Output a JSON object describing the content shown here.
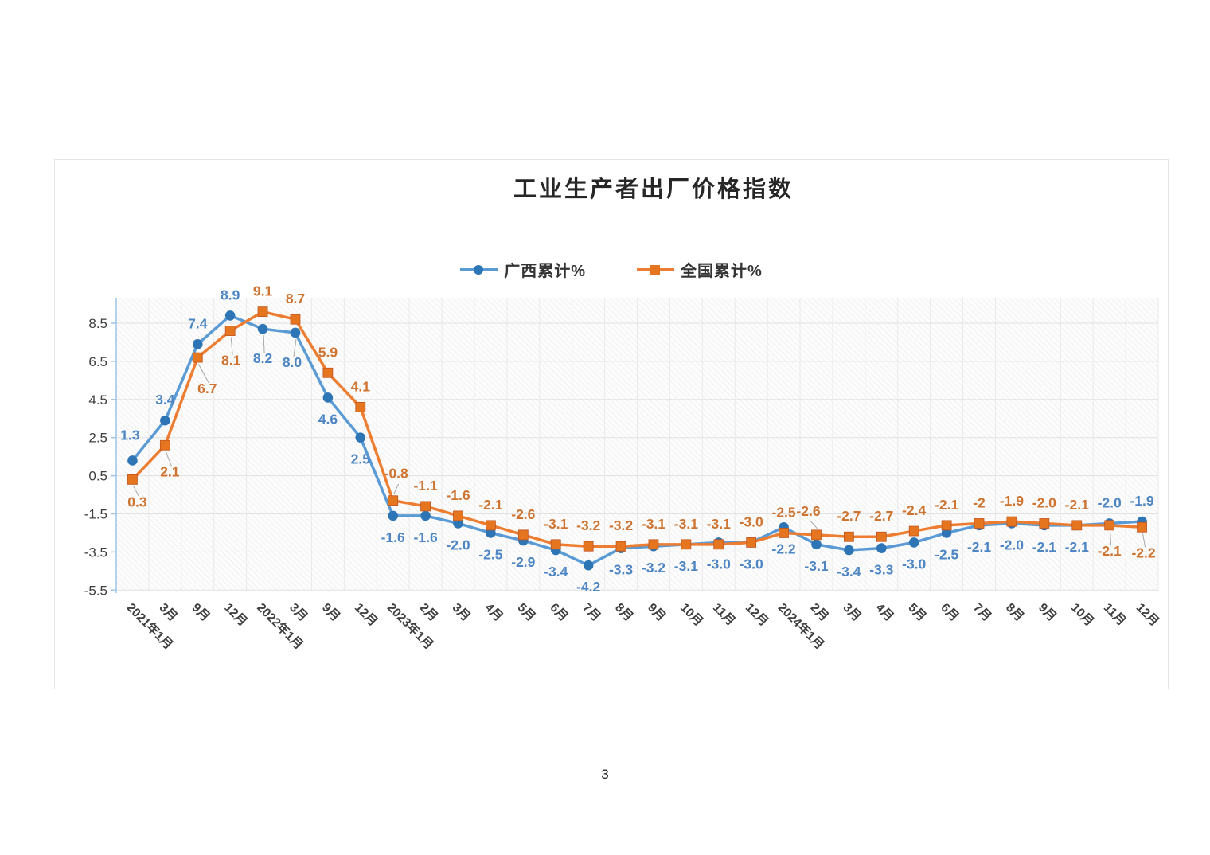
{
  "page": {
    "number": "3"
  },
  "chart_data": {
    "type": "line",
    "title": "工业生产者出厂价格指数",
    "categories": [
      "2021年1月",
      "3月",
      "9月",
      "12月",
      "2022年1月",
      "3月",
      "9月",
      "12月",
      "2023年1月",
      "2月",
      "3月",
      "4月",
      "5月",
      "6月",
      "7月",
      "8月",
      "9月",
      "10月",
      "11月",
      "12月",
      "2024年1月",
      "2月",
      "3月",
      "4月",
      "5月",
      "6月",
      "7月",
      "8月",
      "9月",
      "10月",
      "11月",
      "12月"
    ],
    "series": [
      {
        "name": "广西累计%",
        "marker": "circle",
        "color": "#5B9BD5",
        "marker_color": "#2E75B6",
        "label_color": "#4E86C3",
        "values": [
          1.3,
          3.4,
          7.4,
          8.9,
          8.2,
          8.0,
          4.6,
          2.5,
          -1.6,
          -1.6,
          -2.0,
          -2.5,
          -2.9,
          -3.4,
          -4.2,
          -3.3,
          -3.2,
          -3.1,
          -3.0,
          -3.0,
          -2.2,
          -3.1,
          -3.4,
          -3.3,
          -3.0,
          -2.5,
          -2.1,
          -2.0,
          -2.1,
          -2.1,
          -2.0,
          -1.9
        ],
        "labels": [
          "1.3",
          "3.4",
          "7.4",
          "8.9",
          "8.2",
          "8.0",
          "4.6",
          "2.5",
          "-1.6",
          "-1.6",
          "-2.0",
          "-2.5",
          "-2.9",
          "-3.4",
          "-4.2",
          "-3.3",
          "-3.2",
          "-3.1",
          "-3.0",
          "-3.0",
          "-2.2",
          "-3.1",
          "-3.4",
          "-3.3",
          "-3.0",
          "-2.5",
          "-2.1",
          "-2.0",
          "-2.1",
          "-2.1",
          "-2.0",
          "-1.9"
        ],
        "label_side": [
          "above",
          "above",
          "above",
          "above",
          "below",
          "below",
          "below",
          "below",
          "below",
          "below",
          "below",
          "below",
          "below",
          "below",
          "below",
          "below",
          "below",
          "below",
          "below",
          "below",
          "below",
          "below",
          "below",
          "below",
          "below",
          "below",
          "below",
          "below",
          "below",
          "below",
          "above",
          "above"
        ]
      },
      {
        "name": "全国累计%",
        "marker": "square",
        "color": "#ED7D31",
        "marker_color": "#E5751F",
        "label_color": "#CE7430",
        "values": [
          0.3,
          2.1,
          6.7,
          8.1,
          9.1,
          8.7,
          5.9,
          4.1,
          -0.8,
          -1.1,
          -1.6,
          -2.1,
          -2.6,
          -3.1,
          -3.2,
          -3.2,
          -3.1,
          -3.1,
          -3.1,
          -3.0,
          -2.5,
          -2.6,
          -2.7,
          -2.7,
          -2.4,
          -2.1,
          -2,
          -1.9,
          -2.0,
          -2.1,
          -2.1,
          -2.2
        ],
        "labels": [
          "0.3",
          "2.1",
          "6.7",
          "8.1",
          "9.1",
          "8.7",
          "5.9",
          "4.1",
          "-0.8",
          "-1.1",
          "-1.6",
          "-2.1",
          "-2.6",
          "-3.1",
          "-3.2",
          "-3.2",
          "-3.1",
          "-3.1",
          "-3.1",
          "-3.0",
          "-2.5",
          "-2.6",
          "-2.7",
          "-2.7",
          "-2.4",
          "-2.1",
          "-2",
          "-1.9",
          "-2.0",
          "-2.1",
          "-2.1",
          "-2.2"
        ],
        "label_side": [
          "below",
          "below",
          "below",
          "below",
          "above",
          "above",
          "above",
          "above",
          "above",
          "above",
          "above",
          "above",
          "above",
          "above",
          "above",
          "above",
          "above",
          "above",
          "above",
          "above",
          "above",
          "above",
          "above",
          "above",
          "above",
          "above",
          "above",
          "above",
          "above",
          "above",
          "below",
          "below"
        ]
      }
    ],
    "y_axis": {
      "ticks": [
        8.5,
        6.5,
        4.5,
        2.5,
        0.5,
        -1.5,
        -3.5,
        -5.5
      ],
      "min": -5.6,
      "max": 9.85
    },
    "x_axis": {
      "label_rotation_deg": 45
    },
    "legend": {
      "position": "top-center"
    },
    "grid": true,
    "plot_background": "diagonal-hatch",
    "colors": {
      "axis_line": "#9DC3E6",
      "gridline": "#E2E2E2",
      "hatch_line": "#EBEBEB",
      "plot_bg": "#FCFCFC",
      "leader_line": "#A8A8A8"
    }
  }
}
